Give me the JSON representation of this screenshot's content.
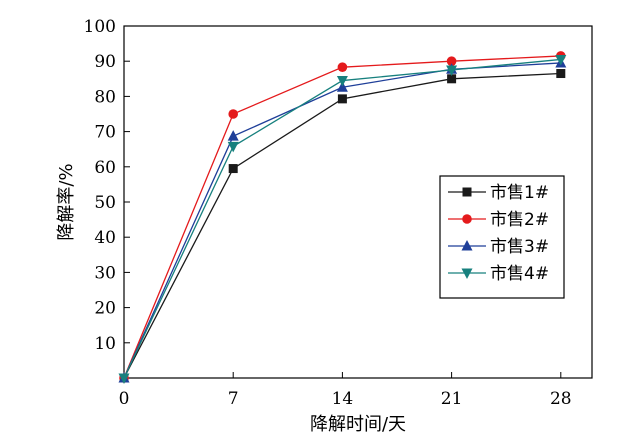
{
  "chart_data": {
    "type": "line",
    "xlabel": "降解时间/天",
    "ylabel": "降解率/%",
    "x": [
      0,
      7,
      14,
      21,
      28
    ],
    "xticks": [
      0,
      7,
      14,
      21,
      28
    ],
    "yticks": [
      10,
      20,
      30,
      40,
      50,
      60,
      70,
      80,
      90,
      100
    ],
    "xlim": [
      0,
      30
    ],
    "ylim": [
      0,
      100
    ],
    "grid": false,
    "legend_position": "center-right",
    "series": [
      {
        "name": "市售1#",
        "values": [
          0,
          59.5,
          79.3,
          85.0,
          86.5
        ],
        "color": "#1a1a1a",
        "marker": "square"
      },
      {
        "name": "市售2#",
        "values": [
          0,
          75.0,
          88.3,
          90.0,
          91.5
        ],
        "color": "#e41a1c",
        "marker": "circle"
      },
      {
        "name": "市售3#",
        "values": [
          0,
          68.7,
          82.6,
          87.7,
          89.5
        ],
        "color": "#1f3f99",
        "marker": "triangle-up"
      },
      {
        "name": "市售4#",
        "values": [
          0,
          65.8,
          84.5,
          87.5,
          90.5
        ],
        "color": "#17807e",
        "marker": "triangle-down"
      }
    ]
  }
}
